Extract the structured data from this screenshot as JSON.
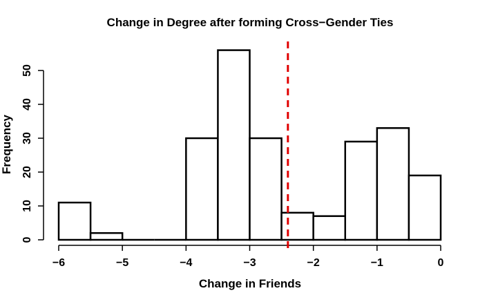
{
  "chart_data": {
    "type": "histogram",
    "title": "Change in Degree after forming Cross−Gender Ties",
    "xlabel": "Change in Friends",
    "ylabel": "Frequency",
    "xlim": [
      -6,
      0
    ],
    "ylim": [
      0,
      56
    ],
    "x_ticks": [
      {
        "value": -6,
        "label": "−6"
      },
      {
        "value": -5,
        "label": "−5"
      },
      {
        "value": -4,
        "label": "−4"
      },
      {
        "value": -3,
        "label": "−3"
      },
      {
        "value": -2,
        "label": "−2"
      },
      {
        "value": -1,
        "label": "−1"
      },
      {
        "value": 0,
        "label": "0"
      }
    ],
    "y_ticks": [
      {
        "value": 0,
        "label": "0"
      },
      {
        "value": 10,
        "label": "10"
      },
      {
        "value": 20,
        "label": "20"
      },
      {
        "value": 30,
        "label": "30"
      },
      {
        "value": 40,
        "label": "40"
      },
      {
        "value": 50,
        "label": "50"
      }
    ],
    "bins": [
      {
        "start": -6.0,
        "end": -5.5,
        "count": 11
      },
      {
        "start": -5.5,
        "end": -5.0,
        "count": 2
      },
      {
        "start": -5.0,
        "end": -4.5,
        "count": 0
      },
      {
        "start": -4.5,
        "end": -4.0,
        "count": 0
      },
      {
        "start": -4.0,
        "end": -3.5,
        "count": 30
      },
      {
        "start": -3.5,
        "end": -3.0,
        "count": 56
      },
      {
        "start": -3.0,
        "end": -2.5,
        "count": 30
      },
      {
        "start": -2.5,
        "end": -2.0,
        "count": 8
      },
      {
        "start": -2.0,
        "end": -1.5,
        "count": 7
      },
      {
        "start": -1.5,
        "end": -1.0,
        "count": 29
      },
      {
        "start": -1.0,
        "end": -0.5,
        "count": 33
      },
      {
        "start": -0.5,
        "end": 0.0,
        "count": 19
      }
    ],
    "reference_line": {
      "x": -2.4,
      "color": "#e00000",
      "style": "dashed"
    }
  }
}
